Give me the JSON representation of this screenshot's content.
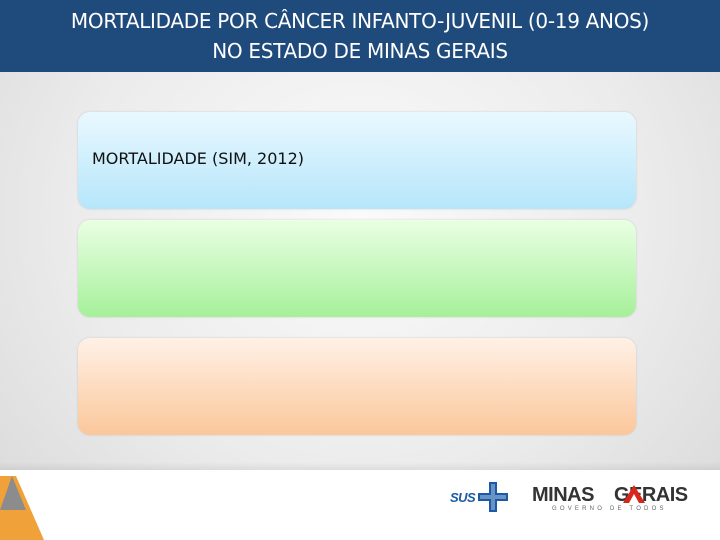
{
  "header": {
    "title_line1": "MORTALIDADE POR CÂNCER INFANTO-JUVENIL (0-19 ANOS)",
    "title_line2": "NO ESTADO DE MINAS GERAIS"
  },
  "cards": [
    {
      "text": "MORTALIDADE (SIM, 2012)",
      "color": "#b6e6fb"
    },
    {
      "text": "",
      "color": "#a6f09a"
    },
    {
      "text": "",
      "color": "#fbc79b"
    }
  ],
  "footer": {
    "sus_logo_text": "SUS",
    "mg_logo_text_left": "MINAS",
    "mg_logo_text_right": "GERAIS",
    "mg_logo_subtitle": "GOVERNO DE TODOS",
    "colors": {
      "header": "#1f4a7c",
      "sus_blue": "#1b5aa6",
      "mg_red": "#d9261c"
    }
  }
}
